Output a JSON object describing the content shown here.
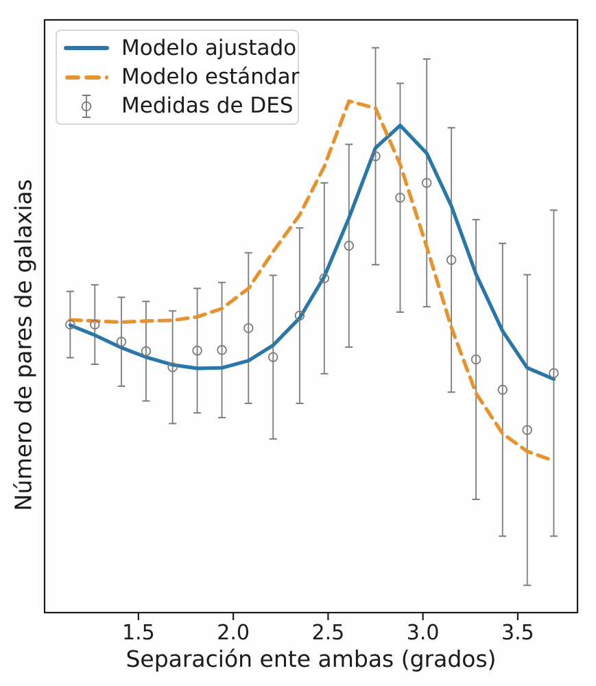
{
  "figure": {
    "background_color": "#fefefe",
    "spine_color": "#1b1b1b",
    "text_color": "#1b1b1b"
  },
  "legend": {
    "border_color": "#d6d6d6",
    "items": [
      {
        "label": "Modelo ajustado",
        "swatch": "solid-line-swatch",
        "color": "#2976a8"
      },
      {
        "label": "Modelo estándar",
        "swatch": "dashed-line-swatch",
        "color": "#e8922e"
      },
      {
        "label": "Medidas de DES",
        "swatch": "errorbar-marker-swatch",
        "color": "#7b7b7b"
      }
    ]
  },
  "chart_data": {
    "type": "line",
    "title": "",
    "xlabel": "Separación ente ambas (grados)",
    "ylabel": "Número de pares de galaxias",
    "xlim": [
      1.005,
      3.815
    ],
    "ylim": [
      0,
      100
    ],
    "grid": false,
    "legend_position": "upper left",
    "y_ticks": [],
    "y_units_note": "y axis shows no tick labels; values below are relative units (0 = bottom axis, 100 = top axis)",
    "x_ticks": [
      {
        "value": 1.5,
        "label": "1.5"
      },
      {
        "value": 2.0,
        "label": "2.0"
      },
      {
        "value": 2.5,
        "label": "2.5"
      },
      {
        "value": 3.0,
        "label": "3.0"
      },
      {
        "value": 3.5,
        "label": "3.5"
      }
    ],
    "x": [
      1.14,
      1.27,
      1.41,
      1.54,
      1.68,
      1.81,
      1.94,
      2.08,
      2.21,
      2.35,
      2.48,
      2.61,
      2.75,
      2.88,
      3.02,
      3.15,
      3.28,
      3.42,
      3.55,
      3.69
    ],
    "series": [
      {
        "name": "Modelo ajustado",
        "style": "solid",
        "color": "#2976a8",
        "line_width": 5.2,
        "values": [
          48.5,
          46.8,
          44.7,
          43.1,
          41.8,
          41.2,
          41.3,
          42.5,
          45.1,
          49.7,
          56.7,
          66.6,
          78.4,
          82.2,
          77.5,
          68.6,
          57.1,
          47.5,
          41.3,
          39.4
        ]
      },
      {
        "name": "Modelo estándar",
        "style": "dashed",
        "color": "#e8922e",
        "line_width": 5.2,
        "dash_pattern": [
          16,
          10
        ],
        "values": [
          49.4,
          49.2,
          49.0,
          49.2,
          49.3,
          49.9,
          51.3,
          54.7,
          60.9,
          67.1,
          75.3,
          86.3,
          85.1,
          75.6,
          61.7,
          48.1,
          37.0,
          30.2,
          27.2,
          25.6
        ]
      },
      {
        "name": "Medidas de DES",
        "style": "errorbar",
        "color": "#7b7b7b",
        "marker": "open-circle",
        "values": [
          48.6,
          48.6,
          45.7,
          44.1,
          41.4,
          44.2,
          44.3,
          48.0,
          43.1,
          50.1,
          56.4,
          61.9,
          77.0,
          70.0,
          72.5,
          59.5,
          42.7,
          37.6,
          30.8,
          40.4
        ],
        "errors": [
          5.6,
          6.7,
          7.5,
          8.4,
          9.5,
          10.5,
          11.4,
          12.7,
          13.8,
          14.8,
          16.1,
          17.1,
          18.3,
          19.3,
          20.9,
          22.3,
          23.6,
          24.7,
          26.2,
          27.5
        ]
      }
    ]
  }
}
